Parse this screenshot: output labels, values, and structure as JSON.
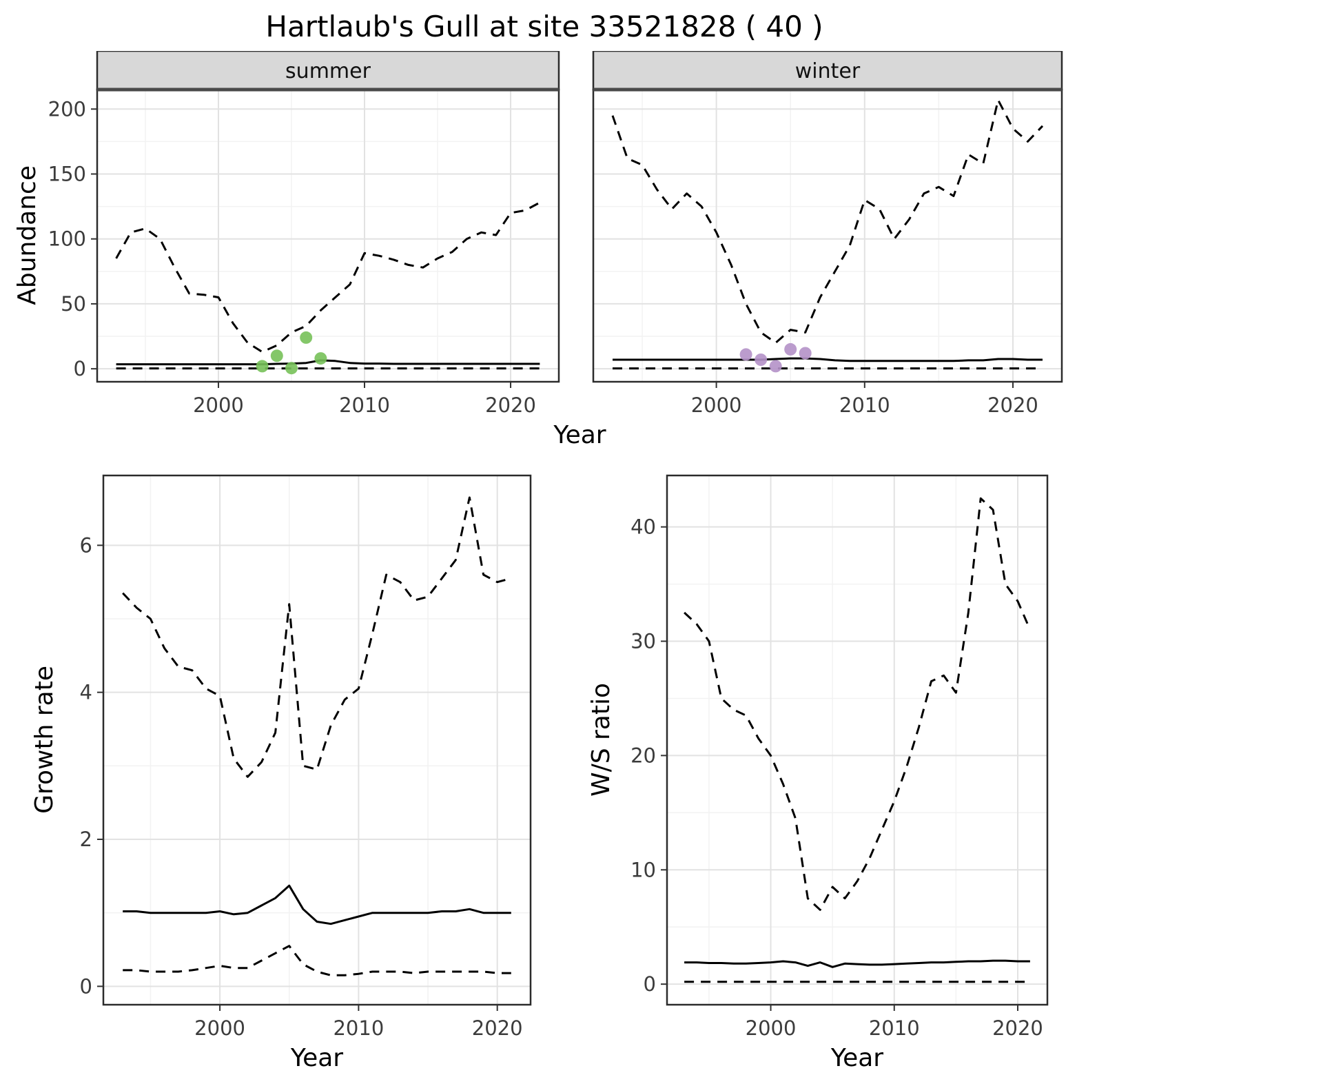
{
  "title": "Hartlaub's Gull at site 33521828 ( 40 )",
  "labels": {
    "x_axis": "Year",
    "abundance_axis": "Abundance",
    "growth_axis": "Growth rate",
    "ws_axis": "W/S ratio",
    "facet_summer": "summer",
    "facet_winter": "winter"
  },
  "colors": {
    "line": "#000000",
    "summer_points": "#77c159",
    "winter_points": "#b491c8",
    "strip_bg": "#d8d8d8",
    "panel_border": "#2b2b2b",
    "grid_major": "#e2e2e2",
    "grid_minor": "#f2f2f2"
  },
  "chart_data": [
    {
      "id": "abundance_summer",
      "type": "line",
      "facet": "summer",
      "ylabel": "Abundance",
      "xlabel": "Year",
      "xlim": [
        1991.7,
        2023.3
      ],
      "ylim": [
        -10,
        215
      ],
      "x_ticks": [
        2000,
        2010,
        2020
      ],
      "y_ticks": [
        0,
        50,
        100,
        150,
        200
      ],
      "series": [
        {
          "name": "upper_ci",
          "style": "dashed",
          "x": [
            1993,
            1994,
            1995,
            1996,
            1997,
            1998,
            1999,
            2000,
            2001,
            2002,
            2003,
            2004,
            2005,
            2006,
            2007,
            2008,
            2009,
            2010,
            2011,
            2012,
            2013,
            2014,
            2015,
            2016,
            2017,
            2018,
            2019,
            2020,
            2021,
            2022
          ],
          "y": [
            85,
            105,
            108,
            100,
            78,
            58,
            57,
            55,
            35,
            20,
            13,
            18,
            28,
            33,
            45,
            55,
            65,
            89,
            87,
            84,
            80,
            78,
            85,
            90,
            100,
            105,
            103,
            120,
            122,
            128
          ]
        },
        {
          "name": "median",
          "style": "solid",
          "x": [
            1993,
            1994,
            1995,
            1996,
            1997,
            1998,
            1999,
            2000,
            2001,
            2002,
            2003,
            2004,
            2005,
            2006,
            2007,
            2008,
            2009,
            2010,
            2011,
            2012,
            2013,
            2014,
            2015,
            2016,
            2017,
            2018,
            2019,
            2020,
            2021,
            2022
          ],
          "y": [
            3.5,
            3.5,
            3.5,
            3.5,
            3.5,
            3.5,
            3.5,
            3.5,
            3.5,
            3.5,
            3.5,
            3.8,
            4,
            4.5,
            6.5,
            6,
            4.5,
            4,
            4,
            3.8,
            3.8,
            3.8,
            3.8,
            3.8,
            3.8,
            3.8,
            3.8,
            3.8,
            3.8,
            3.8
          ]
        },
        {
          "name": "lower_ci",
          "style": "dashed",
          "x": [
            1993,
            1994,
            1995,
            1996,
            1997,
            1998,
            1999,
            2000,
            2001,
            2002,
            2003,
            2004,
            2005,
            2006,
            2007,
            2008,
            2009,
            2010,
            2011,
            2012,
            2013,
            2014,
            2015,
            2016,
            2017,
            2018,
            2019,
            2020,
            2021,
            2022
          ],
          "y": [
            0.3,
            0.3,
            0.3,
            0.3,
            0.3,
            0.3,
            0.3,
            0.3,
            0.3,
            0.3,
            0.3,
            0.3,
            0.3,
            0.3,
            0.3,
            0.3,
            0.3,
            0.3,
            0.3,
            0.3,
            0.3,
            0.3,
            0.3,
            0.3,
            0.3,
            0.3,
            0.3,
            0.3,
            0.3,
            0.3
          ]
        },
        {
          "name": "observations",
          "style": "points",
          "color": "#77c159",
          "x": [
            2003,
            2004,
            2005,
            2006,
            2007
          ],
          "y": [
            2,
            10,
            0.5,
            24,
            8
          ]
        }
      ]
    },
    {
      "id": "abundance_winter",
      "type": "line",
      "facet": "winter",
      "ylabel": "Abundance",
      "xlabel": "Year",
      "xlim": [
        1991.7,
        2023.3
      ],
      "ylim": [
        -10,
        215
      ],
      "x_ticks": [
        2000,
        2010,
        2020
      ],
      "y_ticks": [
        0,
        50,
        100,
        150,
        200
      ],
      "series": [
        {
          "name": "upper_ci",
          "style": "dashed",
          "x": [
            1993,
            1994,
            1995,
            1996,
            1997,
            1998,
            1999,
            2000,
            2001,
            2002,
            2003,
            2004,
            2005,
            2006,
            2007,
            2008,
            2009,
            2010,
            2011,
            2012,
            2013,
            2014,
            2015,
            2016,
            2017,
            2018,
            2019,
            2020,
            2021,
            2022
          ],
          "y": [
            195,
            162,
            157,
            138,
            123,
            135,
            125,
            105,
            80,
            50,
            28,
            20,
            30,
            28,
            55,
            75,
            95,
            130,
            123,
            100,
            115,
            135,
            140,
            133,
            165,
            158,
            207,
            185,
            175,
            187
          ]
        },
        {
          "name": "median",
          "style": "solid",
          "x": [
            1993,
            1994,
            1995,
            1996,
            1997,
            1998,
            1999,
            2000,
            2001,
            2002,
            2003,
            2004,
            2005,
            2006,
            2007,
            2008,
            2009,
            2010,
            2011,
            2012,
            2013,
            2014,
            2015,
            2016,
            2017,
            2018,
            2019,
            2020,
            2021,
            2022
          ],
          "y": [
            7,
            7,
            7,
            7,
            7,
            7,
            7,
            7,
            7,
            7,
            7,
            7.5,
            8,
            8,
            7.5,
            6.5,
            6,
            6,
            6,
            6,
            6,
            6,
            6,
            6,
            6.5,
            6.5,
            7.5,
            7.5,
            7,
            7
          ]
        },
        {
          "name": "lower_ci",
          "style": "dashed",
          "x": [
            1993,
            1994,
            1995,
            1996,
            1997,
            1998,
            1999,
            2000,
            2001,
            2002,
            2003,
            2004,
            2005,
            2006,
            2007,
            2008,
            2009,
            2010,
            2011,
            2012,
            2013,
            2014,
            2015,
            2016,
            2017,
            2018,
            2019,
            2020,
            2021,
            2022
          ],
          "y": [
            0.3,
            0.3,
            0.3,
            0.3,
            0.3,
            0.3,
            0.3,
            0.3,
            0.3,
            0.3,
            0.3,
            0.3,
            0.3,
            0.3,
            0.3,
            0.3,
            0.3,
            0.3,
            0.3,
            0.3,
            0.3,
            0.3,
            0.3,
            0.3,
            0.3,
            0.3,
            0.3,
            0.3,
            0.3,
            0.3
          ]
        },
        {
          "name": "observations",
          "style": "points",
          "color": "#b491c8",
          "x": [
            2002,
            2003,
            2004,
            2005,
            2006
          ],
          "y": [
            11,
            7,
            2,
            15,
            12
          ]
        }
      ]
    },
    {
      "id": "growth_rate",
      "type": "line",
      "facet": null,
      "ylabel": "Growth rate",
      "xlabel": "Year",
      "xlim": [
        1991.6,
        2022.4
      ],
      "ylim": [
        -0.25,
        6.95
      ],
      "x_ticks": [
        2000,
        2010,
        2020
      ],
      "y_ticks": [
        0,
        2,
        4,
        6
      ],
      "series": [
        {
          "name": "upper_ci",
          "style": "dashed",
          "x": [
            1993,
            1994,
            1995,
            1996,
            1997,
            1998,
            1999,
            2000,
            2001,
            2002,
            2003,
            2004,
            2005,
            2006,
            2007,
            2008,
            2009,
            2010,
            2011,
            2012,
            2013,
            2014,
            2015,
            2016,
            2017,
            2018,
            2019,
            2020,
            2021
          ],
          "y": [
            5.35,
            5.15,
            5.0,
            4.6,
            4.35,
            4.3,
            4.05,
            3.95,
            3.1,
            2.85,
            3.05,
            3.45,
            5.2,
            3.0,
            2.95,
            3.55,
            3.9,
            4.05,
            4.8,
            5.6,
            5.5,
            5.25,
            5.3,
            5.55,
            5.8,
            6.65,
            5.6,
            5.5,
            5.55
          ]
        },
        {
          "name": "median",
          "style": "solid",
          "x": [
            1993,
            1994,
            1995,
            1996,
            1997,
            1998,
            1999,
            2000,
            2001,
            2002,
            2003,
            2004,
            2005,
            2006,
            2007,
            2008,
            2009,
            2010,
            2011,
            2012,
            2013,
            2014,
            2015,
            2016,
            2017,
            2018,
            2019,
            2020,
            2021
          ],
          "y": [
            1.02,
            1.02,
            1.0,
            1.0,
            1.0,
            1.0,
            1.0,
            1.02,
            0.98,
            1.0,
            1.1,
            1.2,
            1.37,
            1.05,
            0.88,
            0.85,
            0.9,
            0.95,
            1.0,
            1.0,
            1.0,
            1.0,
            1.0,
            1.02,
            1.02,
            1.05,
            1.0,
            1.0,
            1.0
          ]
        },
        {
          "name": "lower_ci",
          "style": "dashed",
          "x": [
            1993,
            1994,
            1995,
            1996,
            1997,
            1998,
            1999,
            2000,
            2001,
            2002,
            2003,
            2004,
            2005,
            2006,
            2007,
            2008,
            2009,
            2010,
            2011,
            2012,
            2013,
            2014,
            2015,
            2016,
            2017,
            2018,
            2019,
            2020,
            2021
          ],
          "y": [
            0.22,
            0.22,
            0.2,
            0.2,
            0.2,
            0.22,
            0.25,
            0.28,
            0.25,
            0.25,
            0.35,
            0.45,
            0.55,
            0.3,
            0.2,
            0.15,
            0.15,
            0.17,
            0.2,
            0.2,
            0.2,
            0.18,
            0.2,
            0.2,
            0.2,
            0.2,
            0.2,
            0.18,
            0.18
          ]
        }
      ]
    },
    {
      "id": "ws_ratio",
      "type": "line",
      "facet": null,
      "ylabel": "W/S ratio",
      "xlabel": "Year",
      "xlim": [
        1991.6,
        2022.4
      ],
      "ylim": [
        -1.8,
        44.5
      ],
      "x_ticks": [
        2000,
        2010,
        2020
      ],
      "y_ticks": [
        0,
        10,
        20,
        30,
        40
      ],
      "series": [
        {
          "name": "upper_ci",
          "style": "dashed",
          "x": [
            1993,
            1994,
            1995,
            1996,
            1997,
            1998,
            1999,
            2000,
            2001,
            2002,
            2003,
            2004,
            2005,
            2006,
            2007,
            2008,
            2009,
            2010,
            2011,
            2012,
            2013,
            2014,
            2015,
            2016,
            2017,
            2018,
            2019,
            2020,
            2021
          ],
          "y": [
            32.5,
            31.5,
            30,
            25,
            24,
            23.5,
            21.5,
            20,
            17.5,
            14.5,
            7.5,
            6.5,
            8.5,
            7.5,
            9,
            11,
            13.5,
            16,
            19,
            22.5,
            26.5,
            27,
            25.5,
            32.5,
            42.5,
            41.5,
            35,
            33.5,
            31
          ]
        },
        {
          "name": "median",
          "style": "solid",
          "x": [
            1993,
            1994,
            1995,
            1996,
            1997,
            1998,
            1999,
            2000,
            2001,
            2002,
            2003,
            2004,
            2005,
            2006,
            2007,
            2008,
            2009,
            2010,
            2011,
            2012,
            2013,
            2014,
            2015,
            2016,
            2017,
            2018,
            2019,
            2020,
            2021
          ],
          "y": [
            1.9,
            1.9,
            1.85,
            1.85,
            1.8,
            1.8,
            1.85,
            1.9,
            2.0,
            1.9,
            1.6,
            1.9,
            1.5,
            1.8,
            1.75,
            1.7,
            1.7,
            1.75,
            1.8,
            1.85,
            1.9,
            1.9,
            1.95,
            2.0,
            2.0,
            2.05,
            2.05,
            2.0,
            2.0
          ]
        },
        {
          "name": "lower_ci",
          "style": "dashed",
          "x": [
            1993,
            1994,
            1995,
            1996,
            1997,
            1998,
            1999,
            2000,
            2001,
            2002,
            2003,
            2004,
            2005,
            2006,
            2007,
            2008,
            2009,
            2010,
            2011,
            2012,
            2013,
            2014,
            2015,
            2016,
            2017,
            2018,
            2019,
            2020,
            2021
          ],
          "y": [
            0.2,
            0.2,
            0.2,
            0.2,
            0.2,
            0.2,
            0.2,
            0.2,
            0.2,
            0.2,
            0.2,
            0.2,
            0.2,
            0.2,
            0.2,
            0.2,
            0.2,
            0.2,
            0.2,
            0.2,
            0.2,
            0.2,
            0.2,
            0.2,
            0.2,
            0.2,
            0.2,
            0.2,
            0.2
          ]
        }
      ]
    }
  ]
}
